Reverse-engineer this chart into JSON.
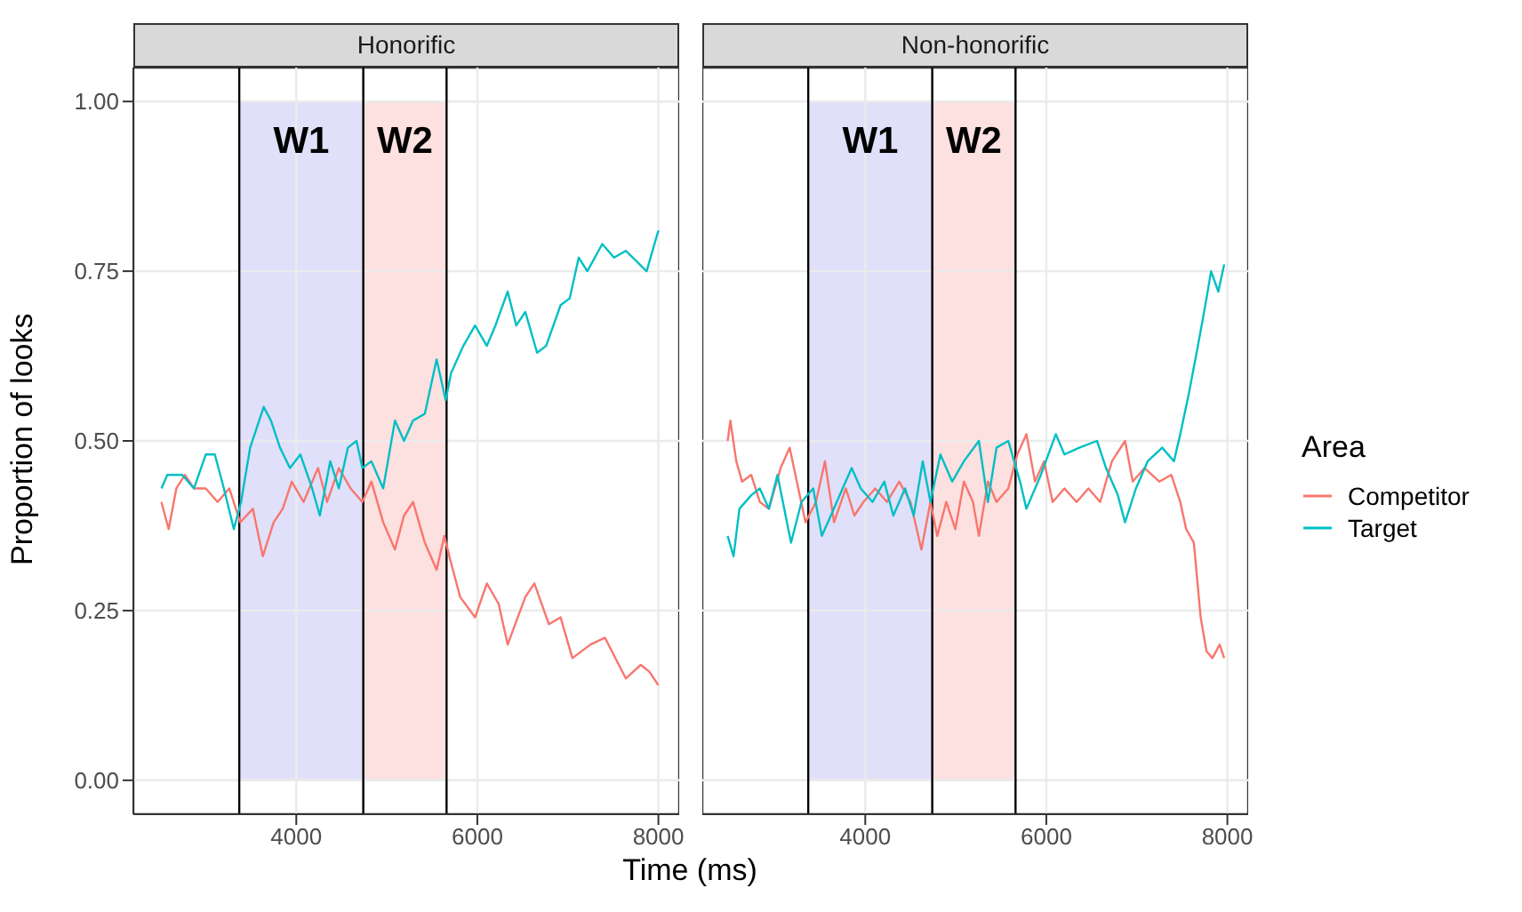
{
  "chart_data": [
    {
      "type": "line",
      "title": "Honorific",
      "xlabel": "Time (ms)",
      "ylabel": "Proportion of looks",
      "xlim": [
        2200,
        8230
      ],
      "xticks": [
        4000,
        6000,
        8000
      ],
      "ylim": [
        -0.05,
        1.05
      ],
      "yticks": [
        {
          "value": 0,
          "label": "0.00"
        },
        {
          "value": 0.25,
          "label": "0.25"
        },
        {
          "value": 0.5,
          "label": "0.50"
        },
        {
          "value": 0.75,
          "label": "0.75"
        },
        {
          "value": 1,
          "label": "1.00"
        }
      ],
      "grid": true,
      "bands": [
        {
          "axis": "x",
          "from": 3370,
          "to": 4740,
          "label": "W1",
          "color": "#e0e0fa"
        },
        {
          "axis": "x",
          "from": 4740,
          "to": 5660,
          "label": "W2",
          "color": "#fde0e0"
        }
      ],
      "ref_lines": [
        {
          "axis": "x",
          "value": 3370,
          "color": "#000000"
        },
        {
          "axis": "x",
          "value": 4740,
          "color": "#000000"
        },
        {
          "axis": "x",
          "value": 5660,
          "color": "#000000"
        }
      ],
      "series": [
        {
          "color": "#f8766d",
          "x": [
            2510,
            2590,
            2675,
            2770,
            2870,
            3000,
            3130,
            3260,
            3380,
            3520,
            3630,
            3750,
            3850,
            3950,
            4080,
            4240,
            4340,
            4470,
            4600,
            4730,
            4830,
            4960,
            5090,
            5190,
            5290,
            5420,
            5550,
            5635,
            5710,
            5810,
            5975,
            6105,
            6235,
            6335,
            6530,
            6630,
            6790,
            6920,
            7050,
            7250,
            7410,
            7640,
            7805,
            7900,
            8000
          ],
          "values": [
            0.41,
            0.37,
            0.43,
            0.45,
            0.43,
            0.43,
            0.41,
            0.43,
            0.38,
            0.4,
            0.33,
            0.38,
            0.4,
            0.44,
            0.41,
            0.46,
            0.41,
            0.46,
            0.43,
            0.41,
            0.44,
            0.38,
            0.34,
            0.39,
            0.41,
            0.35,
            0.31,
            0.36,
            0.32,
            0.27,
            0.24,
            0.29,
            0.26,
            0.2,
            0.27,
            0.29,
            0.23,
            0.24,
            0.18,
            0.2,
            0.21,
            0.15,
            0.17,
            0.16,
            0.14
          ]
        },
        {
          "color": "#00bfc4",
          "x": [
            2510,
            2575,
            2740,
            2870,
            3000,
            3100,
            3200,
            3310,
            3390,
            3490,
            3640,
            3720,
            3820,
            3930,
            4045,
            4175,
            4260,
            4375,
            4470,
            4570,
            4665,
            4730,
            4830,
            4960,
            5090,
            5190,
            5290,
            5420,
            5550,
            5650,
            5710,
            5845,
            5975,
            6105,
            6200,
            6335,
            6430,
            6530,
            6660,
            6760,
            6920,
            7020,
            7120,
            7215,
            7380,
            7510,
            7640,
            7870,
            8000
          ],
          "values": [
            0.43,
            0.45,
            0.45,
            0.43,
            0.48,
            0.48,
            0.43,
            0.37,
            0.41,
            0.49,
            0.55,
            0.53,
            0.49,
            0.46,
            0.48,
            0.43,
            0.39,
            0.47,
            0.43,
            0.49,
            0.5,
            0.46,
            0.47,
            0.43,
            0.53,
            0.5,
            0.53,
            0.54,
            0.62,
            0.56,
            0.6,
            0.64,
            0.67,
            0.64,
            0.67,
            0.72,
            0.67,
            0.69,
            0.63,
            0.64,
            0.7,
            0.71,
            0.77,
            0.75,
            0.79,
            0.77,
            0.78,
            0.75,
            0.81
          ]
        }
      ]
    },
    {
      "type": "line",
      "title": "Non-honorific",
      "xlim": [
        2200,
        8230
      ],
      "xticks": [
        4000,
        6000,
        8000
      ],
      "ylim": [
        -0.05,
        1.05
      ],
      "yticks": [
        0,
        0.25,
        0.5,
        0.75,
        1
      ],
      "grid": true,
      "tick_labels": "x",
      "legend": "right",
      "legend_title": "Area",
      "bands": [
        {
          "axis": "x",
          "from": 3370,
          "to": 4740,
          "label": "W1",
          "color": "#e0e0fa"
        },
        {
          "axis": "x",
          "from": 4740,
          "to": 5660,
          "label": "W2",
          "color": "#fde0e0"
        }
      ],
      "ref_lines": [
        {
          "axis": "x",
          "value": 3370,
          "color": "#000000"
        },
        {
          "axis": "x",
          "value": 4740,
          "color": "#000000"
        },
        {
          "axis": "x",
          "value": 5660,
          "color": "#000000"
        }
      ],
      "series": [
        {
          "name": "Competitor",
          "color": "#f8766d",
          "x": [
            2480,
            2510,
            2575,
            2640,
            2740,
            2835,
            2935,
            3065,
            3165,
            3260,
            3340,
            3455,
            3555,
            3655,
            3785,
            3880,
            3980,
            4110,
            4240,
            4375,
            4500,
            4620,
            4720,
            4795,
            4895,
            4995,
            5090,
            5190,
            5255,
            5355,
            5450,
            5580,
            5680,
            5780,
            5875,
            5975,
            6070,
            6200,
            6335,
            6465,
            6595,
            6725,
            6870,
            6955,
            7085,
            7250,
            7380,
            7480,
            7545,
            7630,
            7705,
            7770,
            7835,
            7915,
            7965
          ],
          "values": [
            0.5,
            0.53,
            0.47,
            0.44,
            0.45,
            0.41,
            0.4,
            0.46,
            0.49,
            0.43,
            0.38,
            0.41,
            0.47,
            0.38,
            0.43,
            0.39,
            0.41,
            0.43,
            0.41,
            0.44,
            0.41,
            0.34,
            0.41,
            0.36,
            0.41,
            0.37,
            0.44,
            0.41,
            0.36,
            0.44,
            0.41,
            0.43,
            0.48,
            0.51,
            0.44,
            0.47,
            0.41,
            0.43,
            0.41,
            0.43,
            0.41,
            0.47,
            0.5,
            0.44,
            0.46,
            0.44,
            0.45,
            0.41,
            0.37,
            0.35,
            0.24,
            0.19,
            0.18,
            0.2,
            0.18
          ]
        },
        {
          "name": "Target",
          "color": "#00bfc4",
          "x": [
            2480,
            2545,
            2610,
            2740,
            2835,
            2935,
            3030,
            3180,
            3295,
            3425,
            3520,
            3620,
            3750,
            3850,
            3950,
            4080,
            4210,
            4310,
            4440,
            4535,
            4635,
            4720,
            4830,
            4960,
            5090,
            5255,
            5355,
            5450,
            5580,
            5710,
            5780,
            5940,
            6105,
            6200,
            6365,
            6560,
            6660,
            6790,
            6870,
            6990,
            7120,
            7280,
            7410,
            7480,
            7575,
            7675,
            7770,
            7820,
            7900,
            7965
          ],
          "values": [
            0.36,
            0.33,
            0.4,
            0.42,
            0.43,
            0.4,
            0.45,
            0.35,
            0.41,
            0.43,
            0.36,
            0.39,
            0.43,
            0.46,
            0.43,
            0.41,
            0.44,
            0.39,
            0.43,
            0.39,
            0.47,
            0.41,
            0.48,
            0.44,
            0.47,
            0.5,
            0.41,
            0.49,
            0.5,
            0.44,
            0.4,
            0.45,
            0.51,
            0.48,
            0.49,
            0.5,
            0.46,
            0.42,
            0.38,
            0.43,
            0.47,
            0.49,
            0.47,
            0.51,
            0.57,
            0.64,
            0.71,
            0.75,
            0.72,
            0.76
          ]
        }
      ]
    }
  ]
}
